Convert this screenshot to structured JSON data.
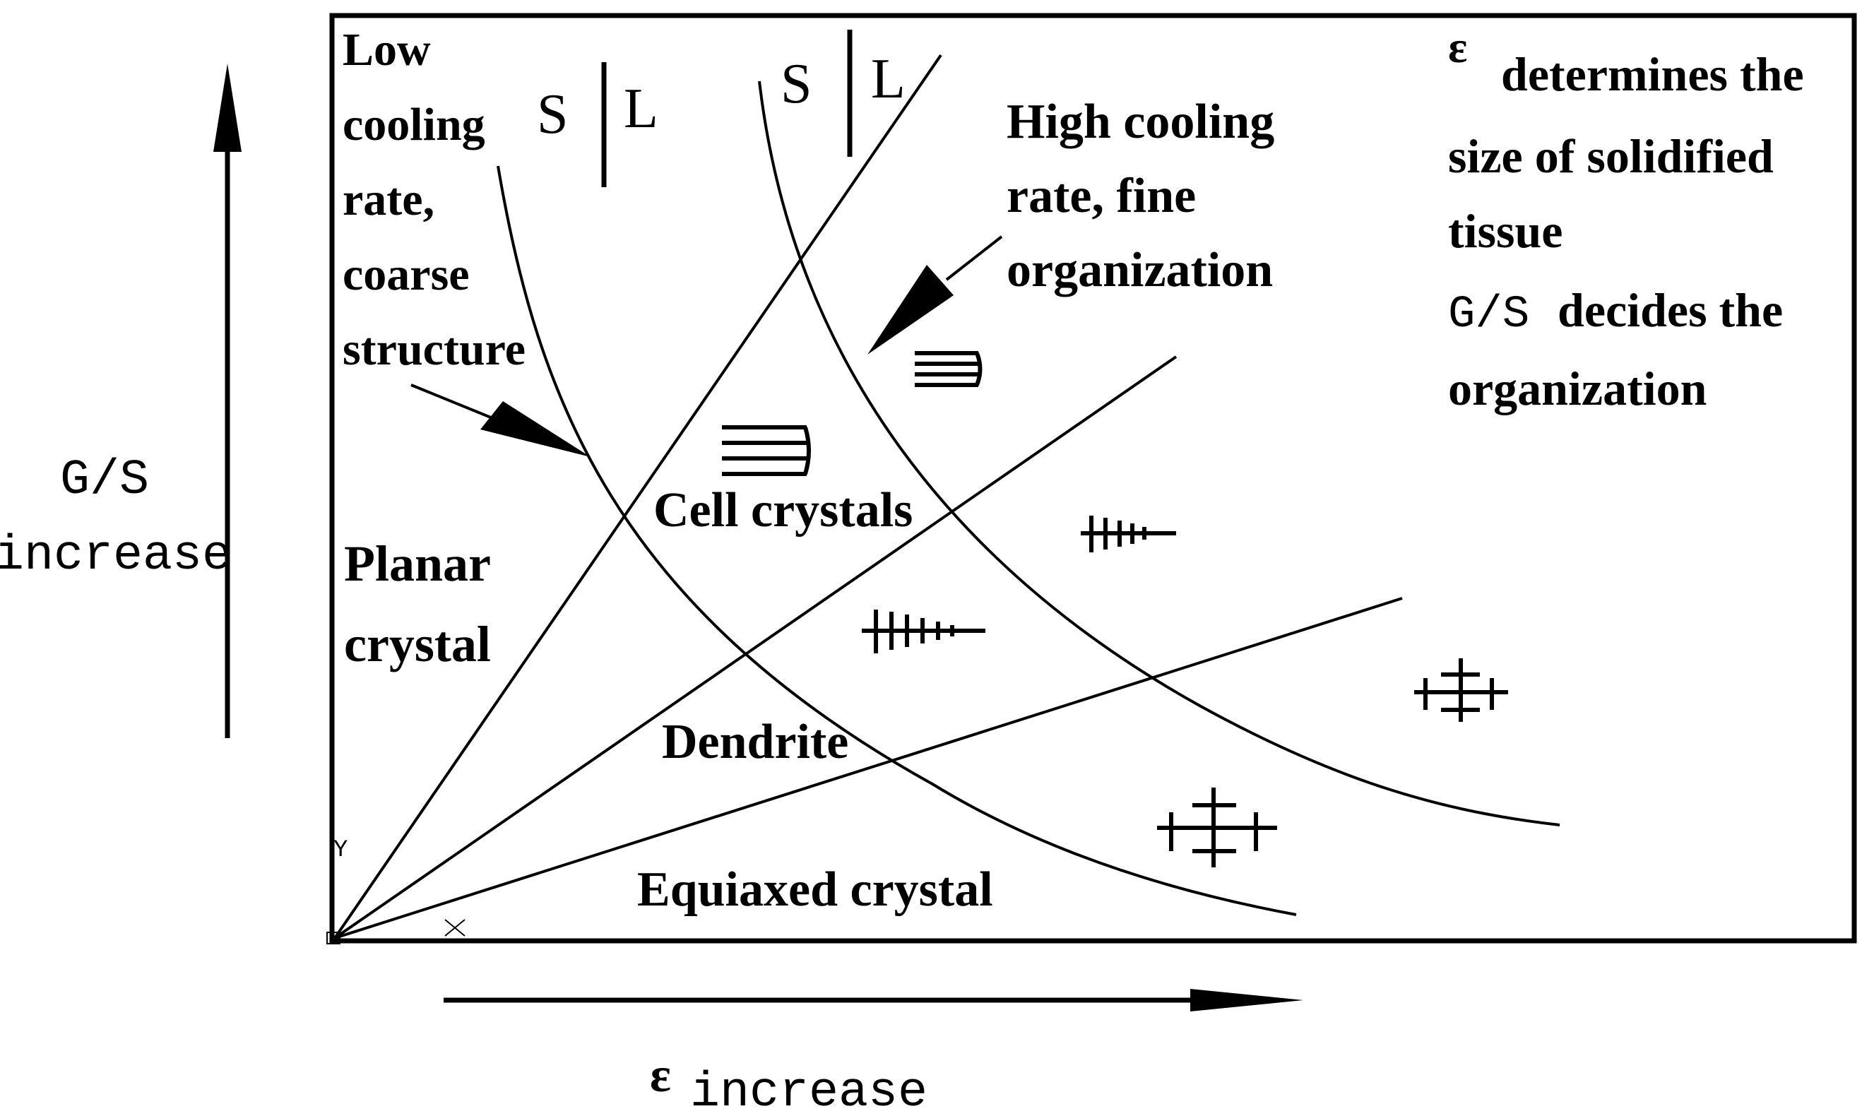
{
  "diagram": {
    "left_panel": {
      "low_cooling": [
        "Low",
        "cooling",
        "rate,",
        "coarse",
        "structure"
      ],
      "planar": [
        "Planar",
        "crystal"
      ]
    },
    "regions": {
      "cell": "Cell crystals",
      "dendrite": "Dendrite",
      "equiaxed": "Equiaxed crystal"
    },
    "interface_labels": {
      "solid": "S",
      "liquid": "L"
    },
    "high_cooling": [
      "High cooling",
      "rate, fine",
      "organization"
    ],
    "notes": {
      "epsilon_symbol": "ε",
      "epsilon_note": "determines the",
      "epsilon_note_2": "size of solidified",
      "epsilon_note_3": "tissue",
      "gs_symbol": "G/S",
      "gs_note": "decides the",
      "gs_note_2": "organization"
    },
    "axes": {
      "y_symbol": "G/S",
      "y_word": "increase",
      "x_symbol": "ε",
      "x_word": "increase",
      "corner_y": "Y"
    }
  }
}
